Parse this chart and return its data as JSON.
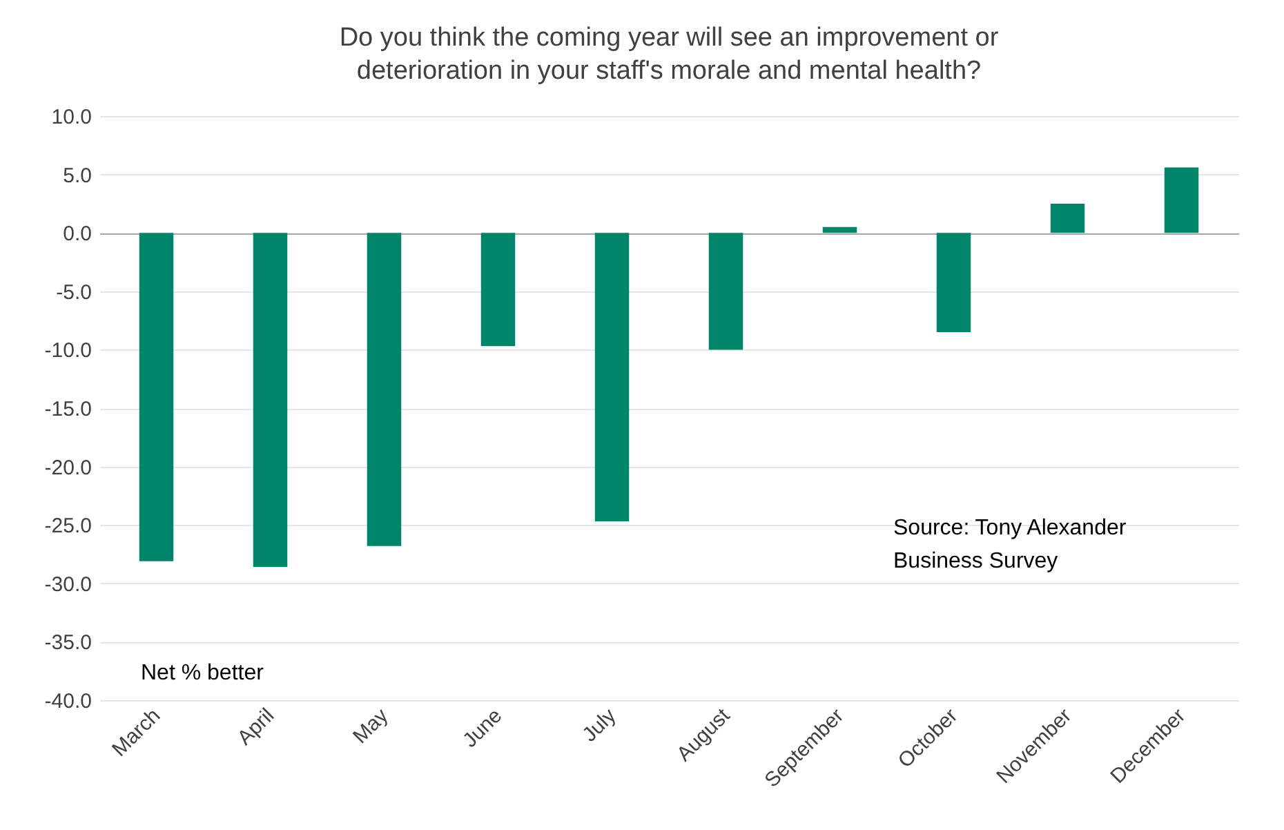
{
  "chart_data": {
    "type": "bar",
    "title": "Do you think the coming year will see an improvement or deterioration in your staff's morale and mental health?",
    "categories": [
      "March",
      "April",
      "May",
      "June",
      "July",
      "August",
      "September",
      "October",
      "November",
      "December"
    ],
    "values": [
      -28.1,
      -28.6,
      -26.8,
      -9.7,
      -24.7,
      -10.0,
      0.5,
      -8.5,
      2.5,
      5.6
    ],
    "color": "#00856a",
    "ylim": [
      -40,
      10
    ],
    "yticks": [
      {
        "value": -40,
        "label": "-40.0"
      },
      {
        "value": -35,
        "label": "-35.0"
      },
      {
        "value": -30,
        "label": "-30.0"
      },
      {
        "value": -25,
        "label": "-25.0"
      },
      {
        "value": -20,
        "label": "-20.0"
      },
      {
        "value": -15,
        "label": "-15.0"
      },
      {
        "value": -10,
        "label": "-10.0"
      },
      {
        "value": -5,
        "label": "-5.0"
      },
      {
        "value": 0,
        "label": "0.0"
      },
      {
        "value": 5,
        "label": "5.0"
      },
      {
        "value": 10,
        "label": "10.0"
      }
    ],
    "grid": "y",
    "annotations": [
      "Net % better",
      "Source: Tony Alexander Business Survey"
    ]
  }
}
